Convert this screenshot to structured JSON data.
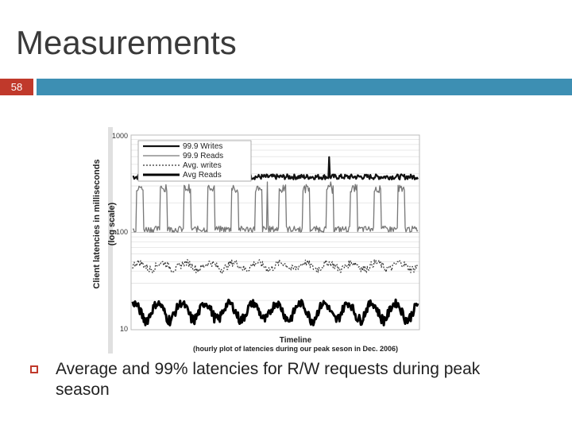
{
  "slide": {
    "title": "Measurements",
    "slide_number": "58",
    "bullet": "Average and 99% latencies for R/W requests during peak season"
  },
  "colors": {
    "accent_red": "#c0392b",
    "accent_blue": "#3d8fb3"
  },
  "chart_data": {
    "type": "line",
    "title": "",
    "xlabel": "Timeline",
    "xlabel_sub": "(hourly plot of latencies during our peak seson in Dec. 2006)",
    "ylabel": "Client latencies in milliseconds",
    "ylabel_sub": "(log scale)",
    "yscale": "log",
    "ylim": [
      10,
      1000
    ],
    "yticks": [
      "1000",
      "100",
      "10"
    ],
    "grid": true,
    "legend_placement": "top-left",
    "series": [
      {
        "name": "99.9 Writes",
        "style": "solid-thick",
        "color": "#111111",
        "approx_level": 380,
        "approx_range": [
          330,
          440
        ]
      },
      {
        "name": "99.9 Reads",
        "style": "solid-gray",
        "color": "#777777",
        "approx_level": 150,
        "approx_range": [
          100,
          300
        ]
      },
      {
        "name": "Avg. writes",
        "style": "dotted",
        "color": "#333333",
        "approx_level": 45,
        "approx_range": [
          38,
          58
        ]
      },
      {
        "name": "Avg Reads",
        "style": "solid-heavy",
        "color": "#000000",
        "approx_level": 15,
        "approx_range": [
          11,
          22
        ]
      }
    ]
  }
}
